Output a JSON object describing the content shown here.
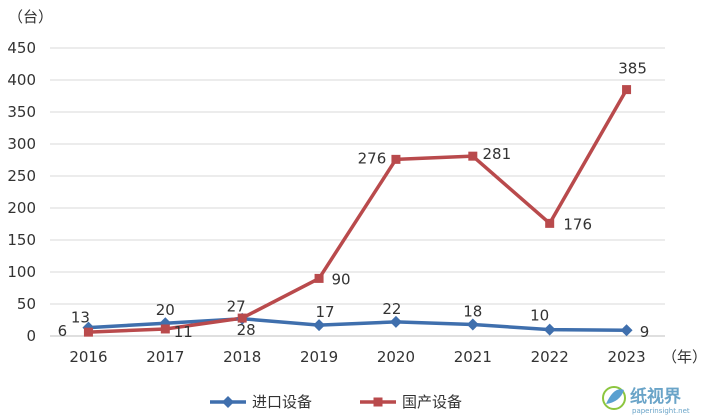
{
  "chart_data": {
    "type": "line",
    "y_unit_label": "（台）",
    "x_unit_label": "（年）",
    "categories": [
      "2016",
      "2017",
      "2018",
      "2019",
      "2020",
      "2021",
      "2022",
      "2023"
    ],
    "ylim": [
      0,
      450
    ],
    "yticks": [
      0,
      50,
      100,
      150,
      200,
      250,
      300,
      350,
      400,
      450
    ],
    "grid": true,
    "legend_position": "bottom",
    "series": [
      {
        "name": "进口设备",
        "color": "#3f6fad",
        "marker": "diamond",
        "values": [
          13,
          20,
          27,
          17,
          22,
          18,
          10,
          9
        ],
        "labels": [
          "13",
          "20",
          "27",
          "17",
          "22",
          "18",
          "10",
          "9"
        ]
      },
      {
        "name": "国产设备",
        "color": "#b94a4c",
        "marker": "square",
        "values": [
          6,
          11,
          28,
          90,
          276,
          281,
          176,
          385
        ],
        "labels": [
          "6",
          "11",
          "28",
          "90",
          "276",
          "281",
          "176",
          "385"
        ]
      }
    ]
  },
  "watermark": {
    "text": "纸视界",
    "url": "paperinsight.net",
    "icon": "leaf-logo-icon"
  }
}
